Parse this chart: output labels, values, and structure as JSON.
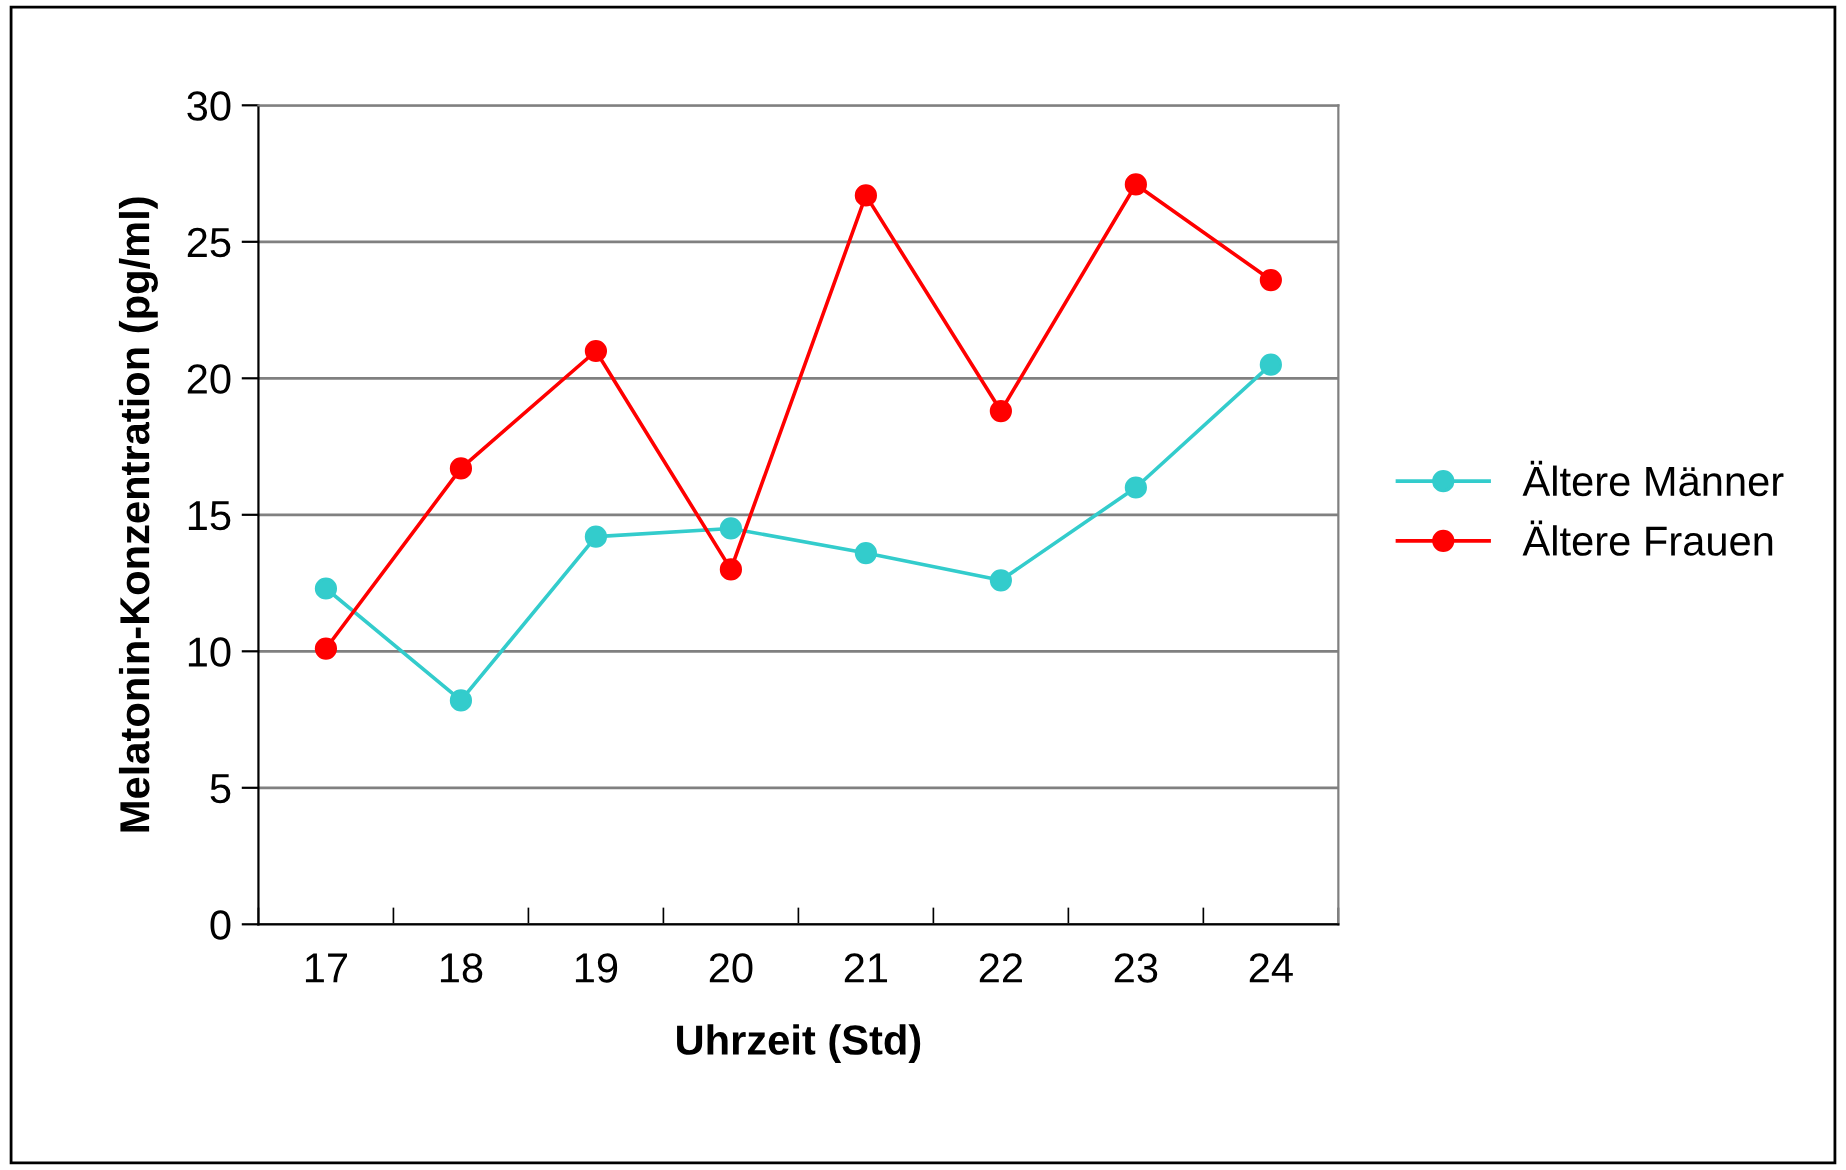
{
  "chart_data": {
    "type": "line",
    "xlabel": "Uhrzeit (Std)",
    "ylabel": "Melatonin-Konzentration (pg/ml)",
    "categories": [
      "17",
      "18",
      "19",
      "20",
      "21",
      "22",
      "23",
      "24"
    ],
    "series": [
      {
        "name": "Ältere Männer",
        "color": "#33cccc",
        "values": [
          12.3,
          8.2,
          14.2,
          14.5,
          13.6,
          12.6,
          16.0,
          20.5
        ]
      },
      {
        "name": "Ältere Frauen",
        "color": "#ff0000",
        "values": [
          10.1,
          16.7,
          21.0,
          13.0,
          26.7,
          18.8,
          27.1,
          23.6
        ]
      }
    ],
    "ylim": [
      0,
      30
    ],
    "yticks": [
      0,
      5,
      10,
      15,
      20,
      25,
      30
    ],
    "grid": "y",
    "legend": "right",
    "marker": "circle",
    "line_style": "solid"
  }
}
